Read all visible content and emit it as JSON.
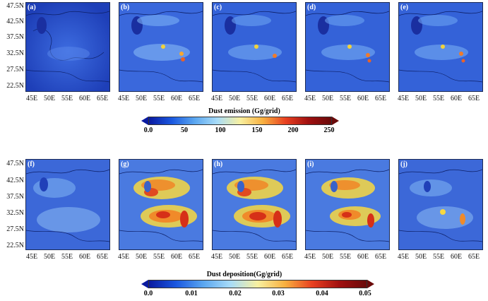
{
  "top": {
    "panel_labels": [
      "(a)",
      "(b)",
      "(c)",
      "(d)",
      "(e)"
    ],
    "lat_labels": [
      "47.5N",
      "42.5N",
      "37.5N",
      "32.5N",
      "27.5N",
      "22.5N"
    ],
    "lon_labels": [
      "45E",
      "50E",
      "55E",
      "60E",
      "65E"
    ],
    "colorbar": {
      "title": "Dust emission (Gg/grid)",
      "ticks": [
        "0.0",
        "50",
        "100",
        "150",
        "200",
        "250"
      ]
    }
  },
  "bottom": {
    "panel_labels": [
      "(f)",
      "(g)",
      "(h)",
      "(i)",
      "(j)"
    ],
    "lat_labels": [
      "47.5N",
      "42.5N",
      "37.5N",
      "32.5N",
      "27.5N",
      "22.5N"
    ],
    "lon_labels": [
      "45E",
      "50E",
      "55E",
      "60E",
      "65E"
    ],
    "colorbar": {
      "title": "Dust deposition(Gg/grid)",
      "ticks": [
        "0.0",
        "0.01",
        "0.02",
        "0.03",
        "0.04",
        "0.05"
      ]
    }
  },
  "colors": {
    "map_background": "#2a52c8",
    "colorbar_low": "#0a1aa0",
    "colorbar_high": "#6a0a0a"
  }
}
